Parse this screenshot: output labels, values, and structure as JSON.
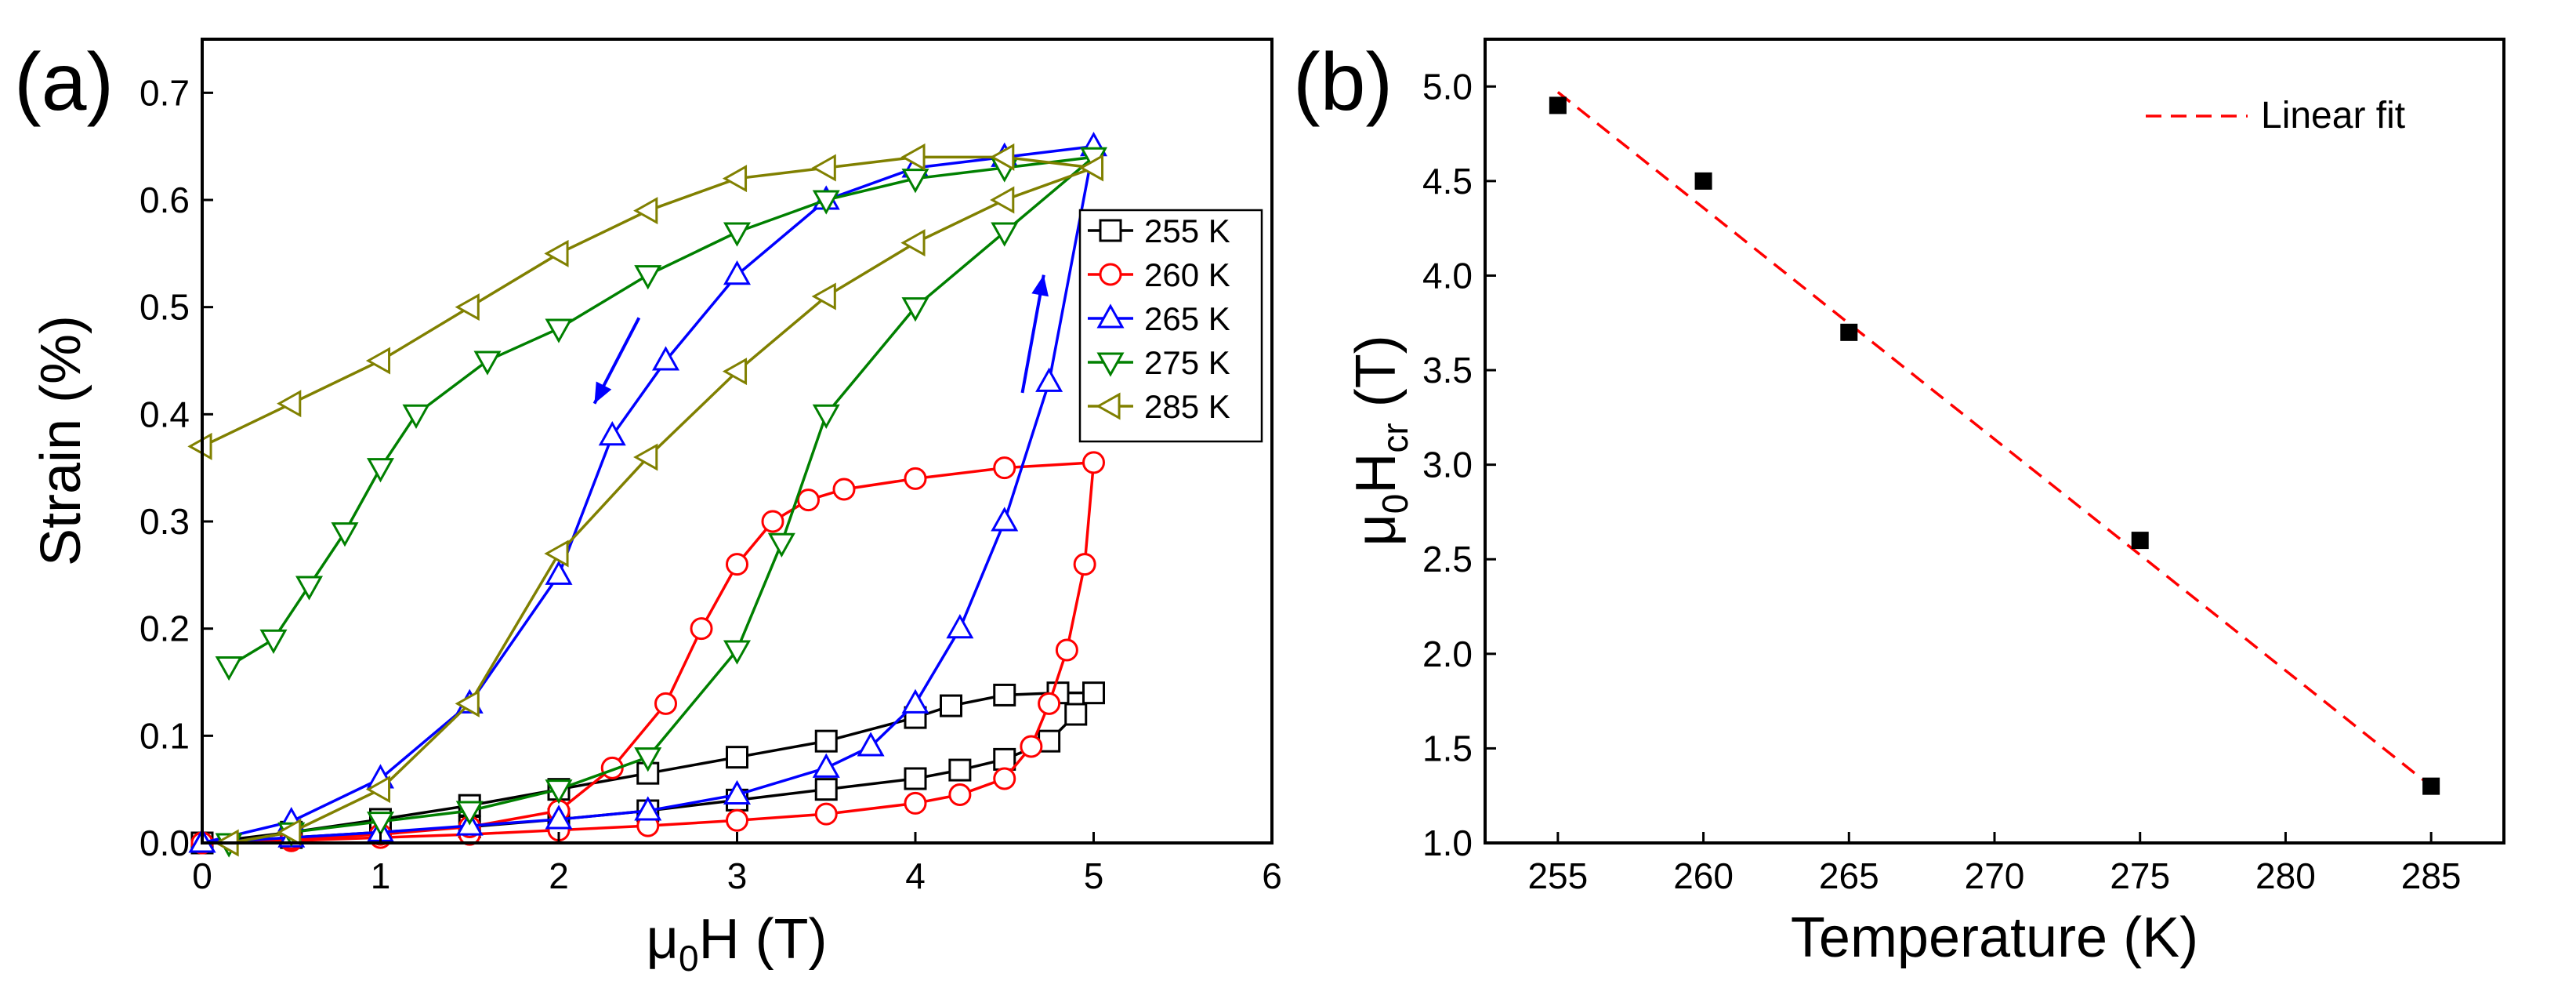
{
  "panels": [
    {
      "label": "(a)"
    },
    {
      "label": "(b)"
    }
  ],
  "chart_data": [
    {
      "type": "line",
      "panel": "(a)",
      "ylabel": "Strain (%)",
      "xlim": [
        0,
        6
      ],
      "ylim": [
        0,
        0.75
      ],
      "xticks": [
        "0",
        "1",
        "2",
        "3",
        "4",
        "5",
        "6"
      ],
      "yticks": [
        "0.0",
        "0.1",
        "0.2",
        "0.3",
        "0.4",
        "0.5",
        "0.6",
        "0.7"
      ],
      "legend": {
        "position": "right-upper-inside"
      },
      "series": [
        {
          "name": "255 K",
          "color": "#000000",
          "marker": "square",
          "x": [
            0,
            0.5,
            1,
            1.5,
            2,
            2.5,
            3,
            3.5,
            4,
            4.25,
            4.5,
            4.75,
            4.9,
            5,
            4.8,
            4.5,
            4.2,
            4,
            3.5,
            3,
            2.5,
            2,
            1.5,
            1,
            0.5,
            0
          ],
          "y": [
            0,
            0.005,
            0.01,
            0.015,
            0.022,
            0.03,
            0.04,
            0.05,
            0.06,
            0.068,
            0.078,
            0.095,
            0.12,
            0.14,
            0.14,
            0.138,
            0.128,
            0.117,
            0.095,
            0.08,
            0.065,
            0.05,
            0.035,
            0.022,
            0.01,
            0
          ]
        },
        {
          "name": "260 K",
          "color": "#ff0000",
          "marker": "circle",
          "x": [
            0,
            0.5,
            1,
            1.5,
            2,
            2.5,
            3,
            3.5,
            4,
            4.25,
            4.5,
            4.65,
            4.75,
            4.85,
            4.95,
            5,
            4.5,
            4,
            3.6,
            3.4,
            3.2,
            3,
            2.8,
            2.6,
            2.3,
            2,
            1.5,
            1,
            0.5,
            0
          ],
          "y": [
            0,
            0.002,
            0.005,
            0.008,
            0.012,
            0.016,
            0.021,
            0.027,
            0.037,
            0.045,
            0.06,
            0.09,
            0.13,
            0.18,
            0.26,
            0.355,
            0.35,
            0.34,
            0.33,
            0.32,
            0.3,
            0.26,
            0.2,
            0.13,
            0.07,
            0.03,
            0.015,
            0.008,
            0.004,
            0
          ]
        },
        {
          "name": "265 K",
          "color": "#0000ff",
          "marker": "triangle-up",
          "x": [
            0,
            0.5,
            1,
            1.5,
            2,
            2.5,
            3,
            3.5,
            3.75,
            4,
            4.25,
            4.5,
            4.75,
            5,
            4.5,
            4,
            3.5,
            3,
            2.6,
            2.3,
            2,
            1.5,
            1,
            0.5,
            0
          ],
          "y": [
            0,
            0.005,
            0.01,
            0.016,
            0.022,
            0.03,
            0.045,
            0.07,
            0.09,
            0.13,
            0.2,
            0.3,
            0.43,
            0.65,
            0.64,
            0.63,
            0.6,
            0.53,
            0.45,
            0.38,
            0.25,
            0.13,
            0.06,
            0.02,
            0
          ]
        },
        {
          "name": "275 K",
          "color": "#008000",
          "marker": "triangle-down",
          "x": [
            0.15,
            0.5,
            1,
            1.5,
            2,
            2.5,
            3,
            3.25,
            3.5,
            4,
            4.5,
            5,
            4.5,
            4,
            3.5,
            3,
            2.5,
            2,
            1.6,
            1.2,
            1,
            0.8,
            0.6,
            0.4,
            0.15
          ],
          "y": [
            0,
            0.01,
            0.02,
            0.03,
            0.05,
            0.08,
            0.18,
            0.28,
            0.4,
            0.5,
            0.57,
            0.64,
            0.63,
            0.62,
            0.6,
            0.57,
            0.53,
            0.48,
            0.45,
            0.4,
            0.35,
            0.29,
            0.24,
            0.19,
            0.165
          ]
        },
        {
          "name": "285 K",
          "color": "#808000",
          "marker": "triangle-left",
          "x": [
            0.15,
            0.5,
            1,
            1.5,
            2,
            2.5,
            3,
            3.5,
            4,
            4.5,
            5,
            4.5,
            4,
            3.5,
            3,
            2.5,
            2,
            1.5,
            1,
            0.5,
            0
          ],
          "y": [
            0,
            0.01,
            0.05,
            0.13,
            0.27,
            0.36,
            0.44,
            0.51,
            0.56,
            0.6,
            0.63,
            0.64,
            0.64,
            0.63,
            0.62,
            0.59,
            0.55,
            0.5,
            0.45,
            0.41,
            0.37
          ]
        }
      ]
    },
    {
      "type": "scatter",
      "panel": "(b)",
      "xlabel": "Temperature (K)",
      "xlim": [
        252.5,
        287.5
      ],
      "ylim": [
        1.0,
        5.25
      ],
      "xticks": [
        "255",
        "260",
        "265",
        "270",
        "275",
        "280",
        "285"
      ],
      "yticks": [
        "1.0",
        "1.5",
        "2.0",
        "2.5",
        "3.0",
        "3.5",
        "4.0",
        "4.5",
        "5.0"
      ],
      "legend": {
        "position": "top-right",
        "entries": [
          "Linear fit"
        ]
      },
      "series": [
        {
          "color": "#000000",
          "marker": "filled-square",
          "x": [
            255,
            260,
            265,
            275,
            285
          ],
          "y": [
            4.9,
            4.5,
            3.7,
            2.6,
            1.3
          ]
        },
        {
          "name": "Linear fit",
          "color": "#ff0000",
          "style": "dashed",
          "x": [
            255,
            285
          ],
          "y": [
            4.97,
            1.3
          ]
        }
      ]
    }
  ]
}
